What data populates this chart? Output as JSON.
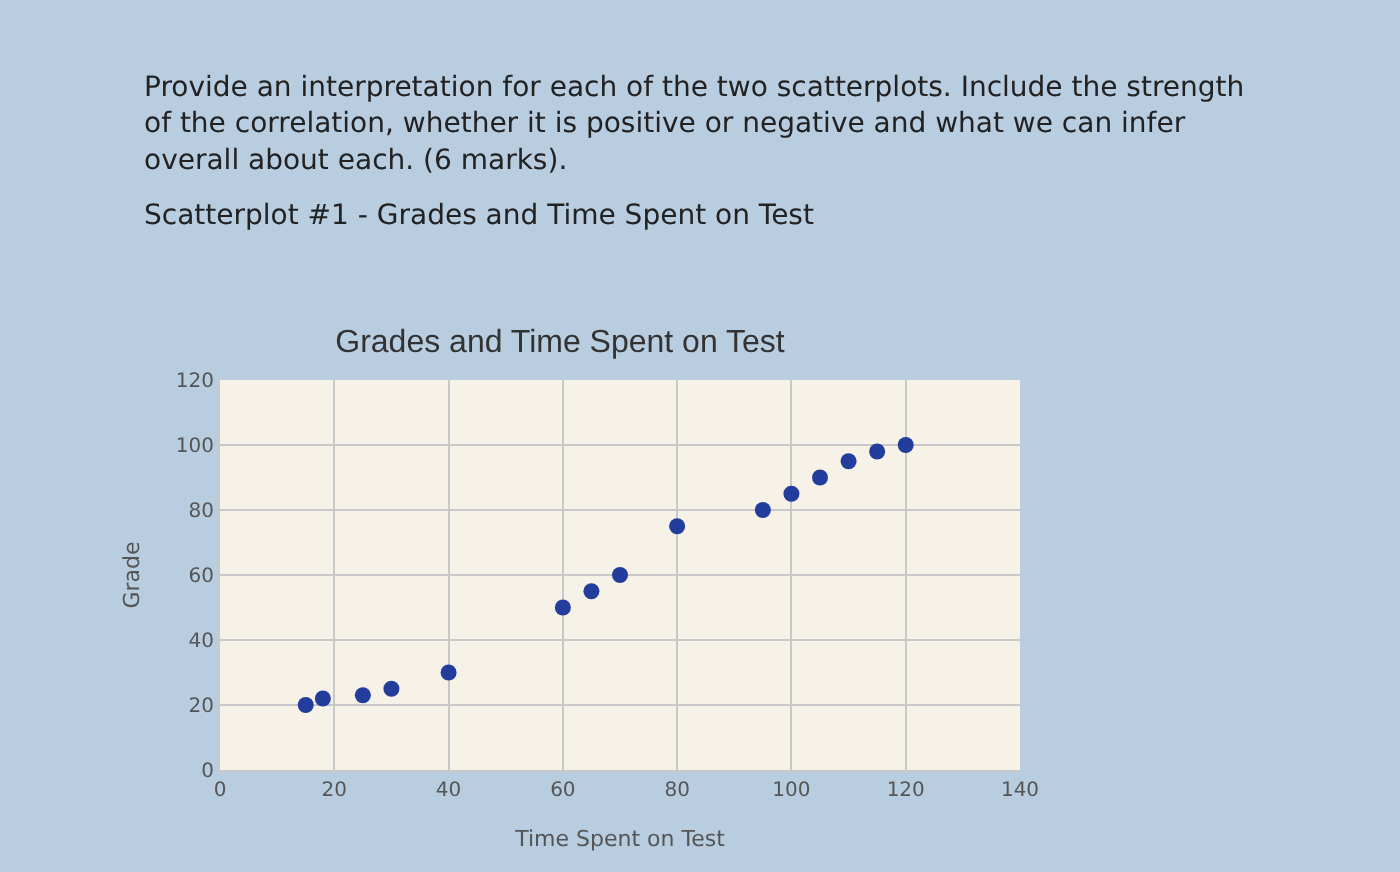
{
  "chart_data": {
    "type": "scatter",
    "title": "Grades and Time Spent on Test",
    "subtitle": "Scatterplot #1 - Grades and Time Spent on Test",
    "xlabel": "Time Spent on Test",
    "ylabel": "Grade",
    "annotations": [
      "Provide an interpretation for each of the two scatterplots. Include the strength of the correlation, whether it is positive or negative and what we can infer overall about each. (6 marks)."
    ],
    "x": [
      15,
      18,
      25,
      30,
      40,
      60,
      65,
      70,
      80,
      95,
      100,
      105,
      110,
      115,
      120
    ],
    "series": [
      {
        "color": "#233d9c",
        "values": [
          20,
          22,
          23,
          25,
          30,
          50,
          55,
          60,
          75,
          80,
          85,
          90,
          95,
          98,
          100
        ]
      }
    ],
    "xlim": [
      0,
      140
    ],
    "xticks": [
      0,
      20,
      40,
      60,
      80,
      100,
      120,
      140
    ],
    "ylim": [
      0,
      120
    ],
    "yticks": [
      0,
      20,
      40,
      60,
      80,
      100,
      120
    ],
    "grid": true,
    "marker": "circle"
  }
}
